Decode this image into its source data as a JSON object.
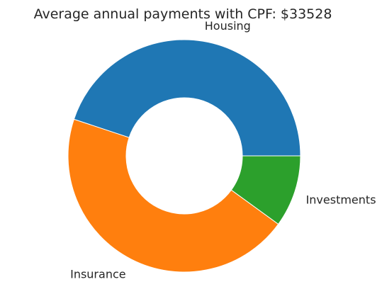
{
  "chart_data": {
    "type": "pie",
    "donut": true,
    "title": "Average annual payments with CPF: $33528",
    "categories": [
      "Housing",
      "Insurance",
      "Investments"
    ],
    "values": [
      0.449,
      0.451,
      0.1
    ],
    "colors": [
      "#1f77b4",
      "#ff7f0e",
      "#2ca02c"
    ],
    "start_angle_deg": 0,
    "direction": "counterclockwise",
    "legend": "none"
  }
}
